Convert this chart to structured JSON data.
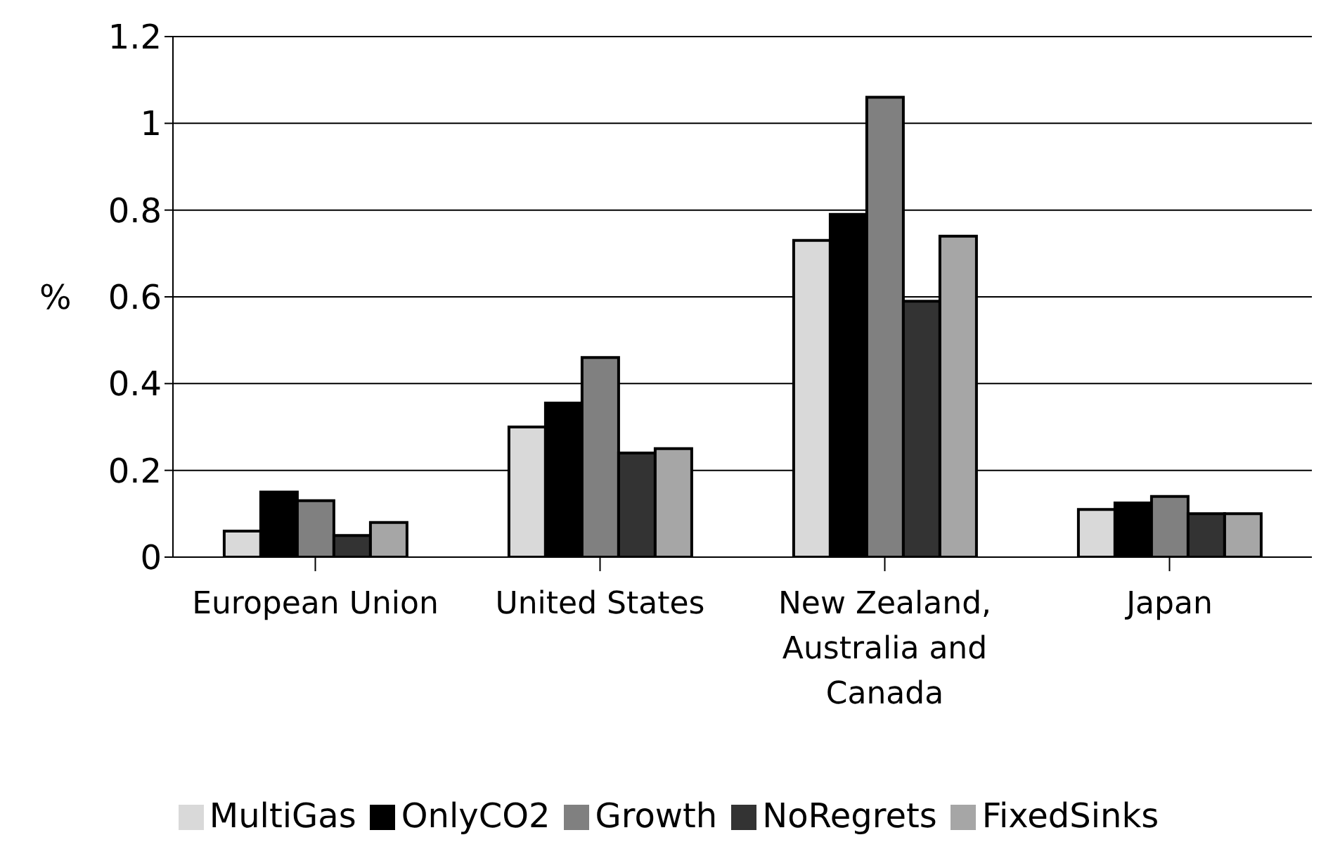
{
  "chart_data": {
    "type": "bar",
    "ylabel": "%",
    "categories": [
      "European Union",
      "United States",
      "New Zealand, Australia and Canada",
      "Japan"
    ],
    "series": [
      {
        "name": "MultiGas",
        "color": "#d9d9d9",
        "values": [
          0.06,
          0.3,
          0.73,
          0.11
        ]
      },
      {
        "name": "OnlyCO2",
        "color": "#000000",
        "values": [
          0.15,
          0.355,
          0.79,
          0.125
        ]
      },
      {
        "name": "Growth",
        "color": "#808080",
        "values": [
          0.13,
          0.46,
          1.06,
          0.14
        ]
      },
      {
        "name": "NoRegrets",
        "color": "#333333",
        "values": [
          0.05,
          0.24,
          0.59,
          0.1
        ]
      },
      {
        "name": "FixedSinks",
        "color": "#a6a6a6",
        "values": [
          0.08,
          0.25,
          0.74,
          0.1
        ]
      }
    ],
    "ylim": [
      0,
      1.2
    ],
    "yticks": [
      0,
      0.2,
      0.4,
      0.6,
      0.8,
      1,
      1.2
    ],
    "grid": "y",
    "legend": "bottom"
  }
}
